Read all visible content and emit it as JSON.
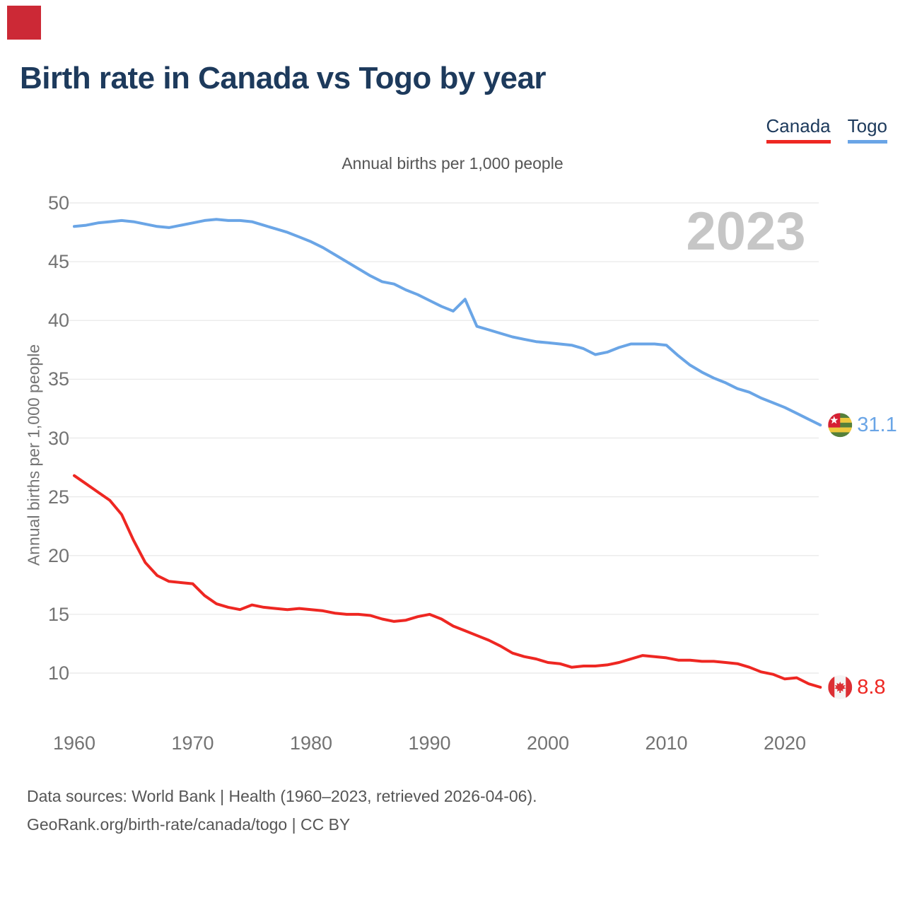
{
  "brand": {
    "color": "#cc2936"
  },
  "title": "Birth rate in Canada vs Togo by year",
  "subtitle": "Annual births per 1,000 people",
  "watermark": "2023",
  "legend": {
    "canada": {
      "label": "Canada",
      "color": "#ee2722"
    },
    "togo": {
      "label": "Togo",
      "color": "#6aa5e6"
    }
  },
  "y_axis": {
    "title": "Annual births per 1,000 people",
    "ticks": [
      50,
      45,
      40,
      35,
      30,
      25,
      20,
      15,
      10
    ]
  },
  "x_axis": {
    "ticks": [
      1960,
      1970,
      1980,
      1990,
      2000,
      2010,
      2020
    ]
  },
  "end_labels": {
    "togo": {
      "value": "31.1",
      "flag": "togo-flag-icon"
    },
    "canada": {
      "value": "8.8",
      "flag": "canada-flag-icon"
    }
  },
  "flags": {
    "togo": {
      "green": "#55803a",
      "yellow": "#edc83d",
      "red": "#d61f33",
      "star": "#ffffff"
    },
    "canada": {
      "red": "#dc2f34",
      "white": "#f4f4f4"
    }
  },
  "footer": {
    "line1": "Data sources: World Bank | Health (1960–2023, retrieved 2026-04-06).",
    "line2": "GeoRank.org/birth-rate/canada/togo | CC BY"
  },
  "grid_color": "#e8e8e8",
  "chart_data": {
    "type": "line",
    "title": "Birth rate in Canada vs Togo by year",
    "xlabel": "",
    "ylabel": "Annual births per 1,000 people",
    "xlim": [
      1960,
      2023
    ],
    "ylim": [
      8,
      51
    ],
    "grid": "horizontal-only",
    "legend_position": "top-right",
    "x": [
      1960,
      1961,
      1962,
      1963,
      1964,
      1965,
      1966,
      1967,
      1968,
      1969,
      1970,
      1971,
      1972,
      1973,
      1974,
      1975,
      1976,
      1977,
      1978,
      1979,
      1980,
      1981,
      1982,
      1983,
      1984,
      1985,
      1986,
      1987,
      1988,
      1989,
      1990,
      1991,
      1992,
      1993,
      1994,
      1995,
      1996,
      1997,
      1998,
      1999,
      2000,
      2001,
      2002,
      2003,
      2004,
      2005,
      2006,
      2007,
      2008,
      2009,
      2010,
      2011,
      2012,
      2013,
      2014,
      2015,
      2016,
      2017,
      2018,
      2019,
      2020,
      2021,
      2022,
      2023
    ],
    "series": [
      {
        "name": "Canada",
        "color": "#ee2722",
        "values": [
          26.8,
          26.1,
          25.4,
          24.7,
          23.5,
          21.3,
          19.4,
          18.3,
          17.8,
          17.7,
          17.6,
          16.6,
          15.9,
          15.6,
          15.4,
          15.8,
          15.6,
          15.5,
          15.4,
          15.5,
          15.4,
          15.3,
          15.1,
          15.0,
          15.0,
          14.9,
          14.6,
          14.4,
          14.5,
          14.8,
          15.0,
          14.6,
          14.0,
          13.6,
          13.2,
          12.8,
          12.3,
          11.7,
          11.4,
          11.2,
          10.9,
          10.8,
          10.5,
          10.6,
          10.6,
          10.7,
          10.9,
          11.2,
          11.5,
          11.4,
          11.3,
          11.1,
          11.1,
          11.0,
          11.0,
          10.9,
          10.8,
          10.5,
          10.1,
          9.9,
          9.5,
          9.6,
          9.1,
          8.8
        ]
      },
      {
        "name": "Togo",
        "color": "#6aa5e6",
        "values": [
          48.0,
          48.1,
          48.3,
          48.4,
          48.5,
          48.4,
          48.2,
          48.0,
          47.9,
          48.1,
          48.3,
          48.5,
          48.6,
          48.5,
          48.5,
          48.4,
          48.1,
          47.8,
          47.5,
          47.1,
          46.7,
          46.2,
          45.6,
          45.0,
          44.4,
          43.8,
          43.3,
          43.1,
          42.6,
          42.2,
          41.7,
          41.2,
          40.8,
          41.8,
          39.5,
          39.2,
          38.9,
          38.6,
          38.4,
          38.2,
          38.1,
          38.0,
          37.9,
          37.6,
          37.1,
          37.3,
          37.7,
          38.0,
          38.0,
          38.0,
          37.9,
          37.0,
          36.2,
          35.6,
          35.1,
          34.7,
          34.2,
          33.9,
          33.4,
          33.0,
          32.6,
          32.1,
          31.6,
          31.1
        ]
      }
    ]
  }
}
